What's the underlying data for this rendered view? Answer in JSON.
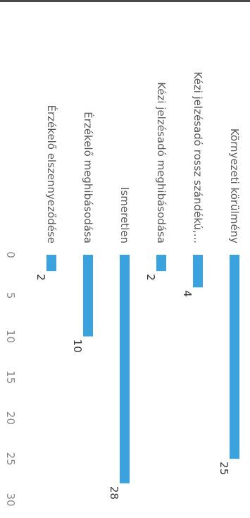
{
  "chart_data": {
    "type": "bar",
    "orientation": "horizontal",
    "rotation": "90deg-clockwise",
    "title": "",
    "xlabel": "",
    "ylabel": "",
    "categories": [
      "Környezeti körülmény",
      "Kézi jelzésadó rossz szándékú,...",
      "Kézi jelzésadó meghibásodása",
      "Ismeretlen",
      "Érzékelő meghibásodása",
      "Érzékelő elszennyeződése"
    ],
    "values": [
      25,
      4,
      2,
      28,
      10,
      2
    ],
    "xlim": [
      0,
      30
    ],
    "ticks": [
      "0",
      "5",
      "10",
      "15",
      "20",
      "25",
      "30"
    ],
    "bar_color": "#3aa3dd",
    "grid": false,
    "legend": "none"
  }
}
